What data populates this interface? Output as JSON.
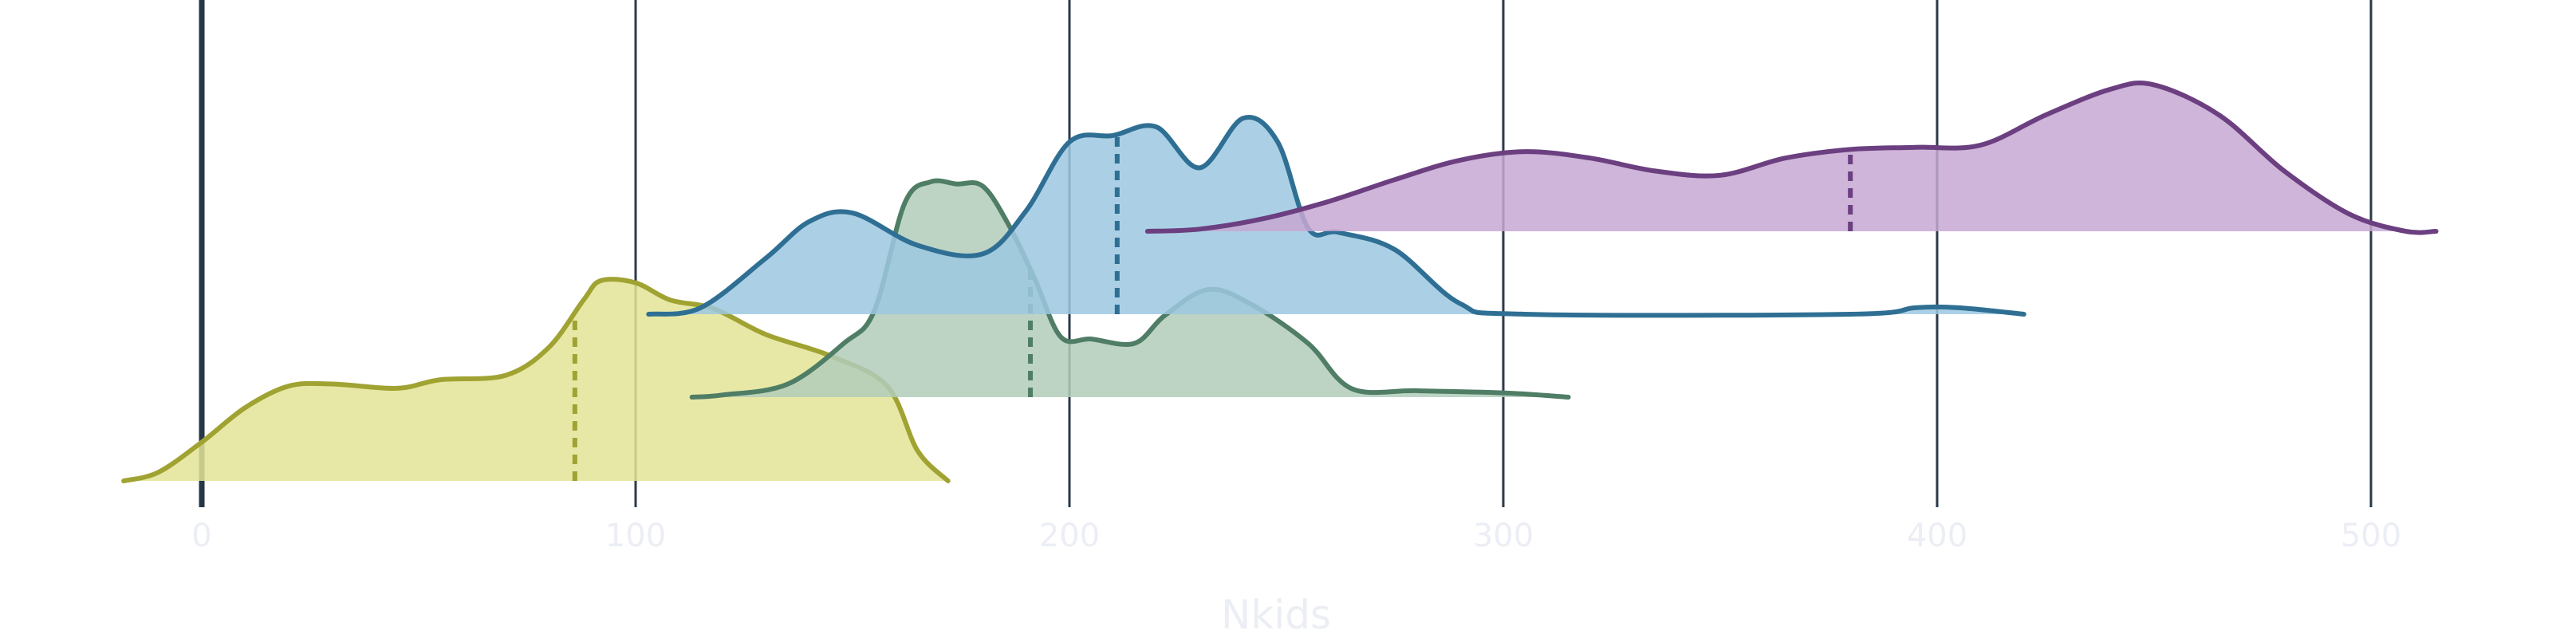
{
  "chart_data": {
    "type": "area",
    "title": "",
    "xlabel": "Nkids",
    "ylabel": "",
    "xlim": [
      -18,
      520
    ],
    "x_ticks": [
      0,
      100,
      200,
      300,
      400,
      500
    ],
    "x_tick_labels": [
      "0",
      "100",
      "200",
      "300",
      "400",
      "500"
    ],
    "grid": true,
    "legend": "none",
    "zero_line_color": "#263746",
    "grid_color": "#2b3a48",
    "series": [
      {
        "color": "#a0a332",
        "fill": "#e3e496",
        "median": 86,
        "points": [
          [
            -18,
            0.0
          ],
          [
            -10,
            0.04
          ],
          [
            0,
            0.18
          ],
          [
            10,
            0.34
          ],
          [
            20,
            0.44
          ],
          [
            30,
            0.45
          ],
          [
            45,
            0.43
          ],
          [
            55,
            0.47
          ],
          [
            70,
            0.49
          ],
          [
            80,
            0.62
          ],
          [
            88,
            0.84
          ],
          [
            92,
            0.93
          ],
          [
            100,
            0.92
          ],
          [
            108,
            0.84
          ],
          [
            118,
            0.8
          ],
          [
            130,
            0.68
          ],
          [
            145,
            0.58
          ],
          [
            158,
            0.44
          ],
          [
            165,
            0.14
          ],
          [
            172,
            0.0
          ]
        ]
      },
      {
        "color": "#4f7d65",
        "fill": "#b2cdbb",
        "median": 191,
        "points": [
          [
            113,
            0.0
          ],
          [
            120,
            0.01
          ],
          [
            135,
            0.06
          ],
          [
            148,
            0.25
          ],
          [
            155,
            0.4
          ],
          [
            162,
            0.9
          ],
          [
            168,
            1.0
          ],
          [
            174,
            0.99
          ],
          [
            180,
            0.98
          ],
          [
            186,
            0.8
          ],
          [
            192,
            0.55
          ],
          [
            198,
            0.28
          ],
          [
            205,
            0.27
          ],
          [
            215,
            0.25
          ],
          [
            222,
            0.38
          ],
          [
            232,
            0.5
          ],
          [
            242,
            0.43
          ],
          [
            255,
            0.25
          ],
          [
            265,
            0.04
          ],
          [
            280,
            0.03
          ],
          [
            300,
            0.02
          ],
          [
            315,
            0.0
          ]
        ]
      },
      {
        "color": "#2f6f94",
        "fill": "#9cc8e1",
        "median": 211,
        "points": [
          [
            103,
            0.0
          ],
          [
            115,
            0.03
          ],
          [
            130,
            0.26
          ],
          [
            140,
            0.43
          ],
          [
            150,
            0.47
          ],
          [
            165,
            0.32
          ],
          [
            180,
            0.28
          ],
          [
            190,
            0.48
          ],
          [
            200,
            0.8
          ],
          [
            210,
            0.83
          ],
          [
            220,
            0.87
          ],
          [
            230,
            0.68
          ],
          [
            240,
            0.91
          ],
          [
            248,
            0.8
          ],
          [
            255,
            0.4
          ],
          [
            262,
            0.38
          ],
          [
            275,
            0.3
          ],
          [
            290,
            0.05
          ],
          [
            305,
            0.0
          ],
          [
            380,
            0.0
          ],
          [
            395,
            0.03
          ],
          [
            405,
            0.03
          ],
          [
            420,
            0.0
          ]
        ]
      },
      {
        "color": "#6b3f80",
        "fill": "#c5a8d2",
        "median": 380,
        "points": [
          [
            218,
            0.0
          ],
          [
            230,
            0.01
          ],
          [
            245,
            0.06
          ],
          [
            260,
            0.14
          ],
          [
            275,
            0.24
          ],
          [
            290,
            0.33
          ],
          [
            305,
            0.37
          ],
          [
            320,
            0.34
          ],
          [
            335,
            0.28
          ],
          [
            350,
            0.26
          ],
          [
            365,
            0.34
          ],
          [
            380,
            0.38
          ],
          [
            395,
            0.39
          ],
          [
            410,
            0.4
          ],
          [
            425,
            0.54
          ],
          [
            440,
            0.66
          ],
          [
            450,
            0.68
          ],
          [
            465,
            0.54
          ],
          [
            480,
            0.28
          ],
          [
            495,
            0.08
          ],
          [
            508,
            0.0
          ],
          [
            515,
            0.0
          ]
        ]
      }
    ]
  }
}
